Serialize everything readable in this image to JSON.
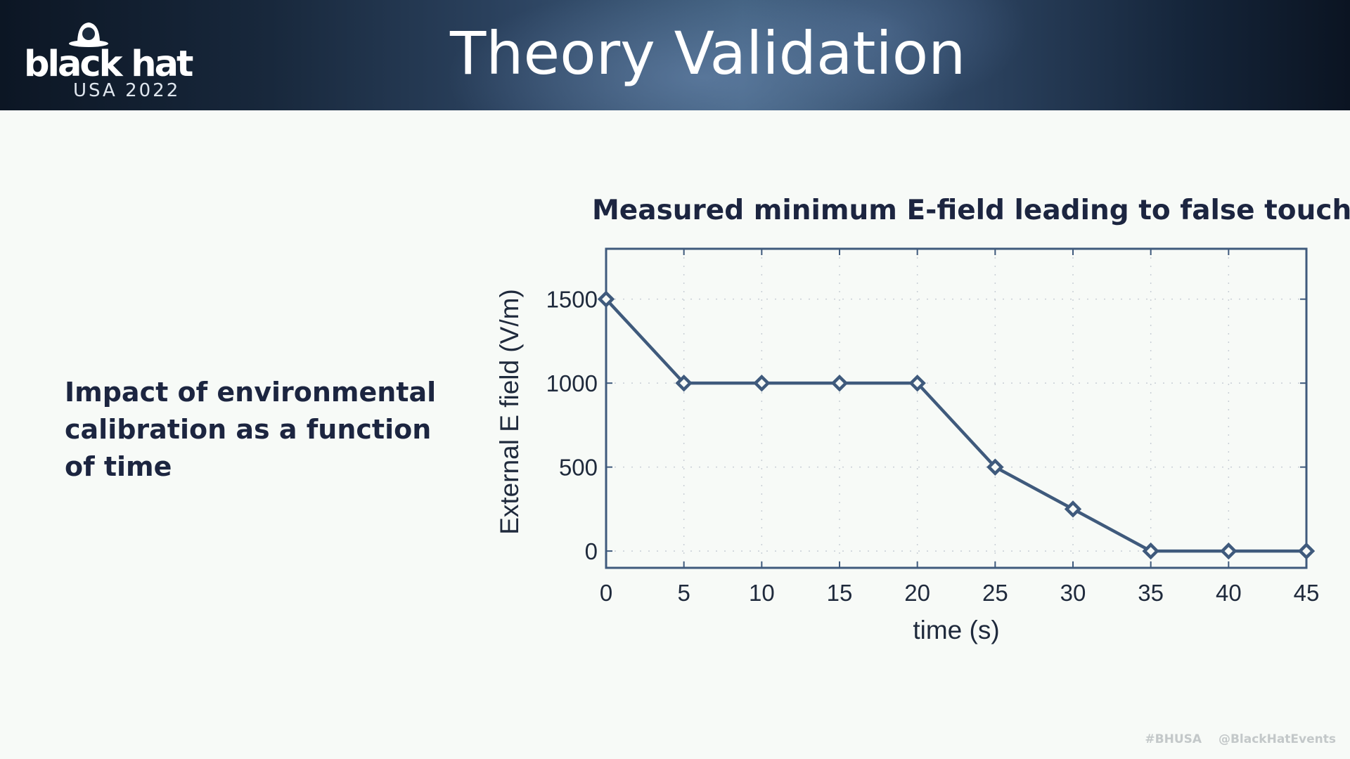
{
  "header": {
    "logo_text": "black hat",
    "logo_sub": "USA 2022",
    "title": "Theory Validation"
  },
  "body_text": "Impact of environmental calibration as a function of time",
  "footer": {
    "hashtag": "#BHUSA",
    "handle": "@BlackHatEvents"
  },
  "colors": {
    "accent": "#3f5a7c",
    "text_dark": "#1c2540"
  },
  "chart_data": {
    "type": "line",
    "title": "Measured minimum E-field leading to false touches",
    "xlabel": "time (s)",
    "ylabel": "External E field (V/m)",
    "x": [
      0,
      5,
      10,
      15,
      20,
      25,
      30,
      35,
      40,
      45
    ],
    "series": [
      {
        "values": [
          1500,
          1000,
          1000,
          1000,
          1000,
          500,
          250,
          0,
          0,
          0
        ]
      }
    ],
    "xlim": [
      0,
      45
    ],
    "ylim": [
      -100,
      1800
    ],
    "xticks": [
      0,
      5,
      10,
      15,
      20,
      25,
      30,
      35,
      40,
      45
    ],
    "yticks": [
      0,
      500,
      1000,
      1500
    ],
    "marker": "diamond",
    "grid": true
  }
}
